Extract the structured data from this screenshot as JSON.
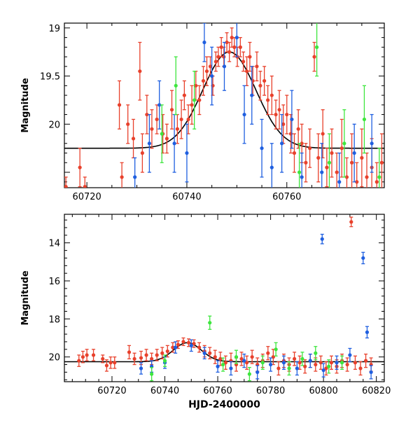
{
  "chart_data": [
    {
      "type": "scatter",
      "title": "",
      "xlabel": "",
      "ylabel": "Magnitude",
      "xlim": [
        60715.5,
        60779.5
      ],
      "ylim": [
        20.66,
        18.95
      ],
      "y_inverted": true,
      "x_ticks": [
        60720,
        60740,
        60760
      ],
      "x_tick_labels": [
        "60720",
        "60740",
        "60760"
      ],
      "y_ticks": [
        19,
        19.5,
        20
      ],
      "y_tick_labels": [
        "19",
        "19.5",
        "20"
      ],
      "grid": false,
      "legend": "none",
      "model_curve": {
        "description_note": "",
        "peak_x": 60748.5,
        "peak_mag": 19.25,
        "base_mag": 20.25,
        "width": 7.5,
        "color": "#000000"
      },
      "series": [
        {
          "color": "#e8412c",
          "points": [
            [
              60715.8,
              20.65,
              0.1
            ],
            [
              60718.6,
              20.45,
              0.2
            ],
            [
              60719.6,
              20.65,
              0.1
            ],
            [
              60726.5,
              19.8,
              0.25
            ],
            [
              60727.0,
              20.55,
              0.15
            ],
            [
              60728.2,
              20.0,
              0.2
            ],
            [
              60729.3,
              20.15,
              0.2
            ],
            [
              60730.6,
              19.45,
              0.3
            ],
            [
              60731.1,
              20.3,
              0.2
            ],
            [
              60732.0,
              19.9,
              0.2
            ],
            [
              60733.0,
              20.05,
              0.2
            ],
            [
              60734.0,
              19.95,
              0.15
            ],
            [
              60735.2,
              20.1,
              0.2
            ],
            [
              60736.0,
              20.15,
              0.15
            ],
            [
              60737.0,
              19.85,
              0.2
            ],
            [
              60738.1,
              20.05,
              0.15
            ],
            [
              60738.9,
              19.95,
              0.2
            ],
            [
              60739.5,
              19.7,
              0.15
            ],
            [
              60740.3,
              19.95,
              0.15
            ],
            [
              60741.0,
              19.8,
              0.2
            ],
            [
              60741.8,
              19.6,
              0.15
            ],
            [
              60742.5,
              19.75,
              0.15
            ],
            [
              60743.3,
              19.55,
              0.15
            ],
            [
              60744.0,
              19.45,
              0.15
            ],
            [
              60744.7,
              19.4,
              0.1
            ],
            [
              60745.2,
              19.6,
              0.1
            ],
            [
              60745.8,
              19.35,
              0.1
            ],
            [
              60746.3,
              19.3,
              0.1
            ],
            [
              60746.9,
              19.2,
              0.1
            ],
            [
              60747.4,
              19.3,
              0.1
            ],
            [
              60748.0,
              19.15,
              0.1
            ],
            [
              60748.5,
              19.25,
              0.1
            ],
            [
              60749.0,
              19.1,
              0.1
            ],
            [
              60749.5,
              19.2,
              0.1
            ],
            [
              60750.1,
              19.3,
              0.1
            ],
            [
              60750.7,
              19.2,
              0.1
            ],
            [
              60751.3,
              19.35,
              0.1
            ],
            [
              60752.0,
              19.45,
              0.15
            ],
            [
              60752.6,
              19.3,
              0.15
            ],
            [
              60753.2,
              19.55,
              0.15
            ],
            [
              60754.0,
              19.4,
              0.15
            ],
            [
              60754.7,
              19.6,
              0.15
            ],
            [
              60755.5,
              19.55,
              0.15
            ],
            [
              60756.2,
              19.75,
              0.15
            ],
            [
              60757.0,
              19.7,
              0.2
            ],
            [
              60757.8,
              19.9,
              0.15
            ],
            [
              60758.5,
              19.85,
              0.2
            ],
            [
              60759.3,
              20.0,
              0.2
            ],
            [
              60760.0,
              19.9,
              0.2
            ],
            [
              60760.8,
              20.1,
              0.2
            ],
            [
              60761.5,
              20.3,
              0.2
            ],
            [
              60762.3,
              20.05,
              0.2
            ],
            [
              60763.0,
              20.2,
              0.2
            ],
            [
              60763.8,
              20.4,
              0.2
            ],
            [
              60764.6,
              20.25,
              0.2
            ],
            [
              60765.5,
              19.3,
              0.15
            ],
            [
              60766.3,
              20.35,
              0.25
            ],
            [
              60767.2,
              20.1,
              0.25
            ],
            [
              60768.0,
              20.45,
              0.2
            ],
            [
              60769.0,
              20.3,
              0.25
            ],
            [
              60770.0,
              20.5,
              0.2
            ],
            [
              60771.0,
              20.25,
              0.3
            ],
            [
              60772.0,
              20.55,
              0.2
            ],
            [
              60773.0,
              20.4,
              0.3
            ],
            [
              60774.0,
              20.6,
              0.2
            ],
            [
              60775.0,
              20.35,
              0.3
            ],
            [
              60776.0,
              20.55,
              0.25
            ],
            [
              60777.0,
              20.45,
              0.3
            ],
            [
              60778.0,
              20.6,
              0.2
            ],
            [
              60779.0,
              20.4,
              0.3
            ]
          ]
        },
        {
          "color": "#1f5fe0",
          "points": [
            [
              60729.6,
              20.55,
              0.2
            ],
            [
              60732.5,
              20.2,
              0.3
            ],
            [
              60734.5,
              19.8,
              0.25
            ],
            [
              60737.5,
              20.2,
              0.3
            ],
            [
              60740.0,
              20.3,
              0.3
            ],
            [
              60743.5,
              19.15,
              0.2
            ],
            [
              60745.0,
              19.5,
              0.3
            ],
            [
              60747.5,
              19.4,
              0.25
            ],
            [
              60750.0,
              19.1,
              0.2
            ],
            [
              60751.5,
              19.9,
              0.3
            ],
            [
              60753.0,
              19.7,
              0.3
            ],
            [
              60755.0,
              20.25,
              0.3
            ],
            [
              60757.0,
              20.45,
              0.25
            ],
            [
              60759.0,
              20.2,
              0.3
            ],
            [
              60761.0,
              19.95,
              0.3
            ],
            [
              60763.0,
              20.55,
              0.25
            ],
            [
              60767.0,
              20.5,
              0.3
            ],
            [
              60770.5,
              20.6,
              0.3
            ],
            [
              60773.5,
              20.3,
              0.3
            ],
            [
              60777.0,
              20.2,
              0.3
            ]
          ]
        },
        {
          "color": "#3ee63e",
          "points": [
            [
              60735.0,
              20.1,
              0.3
            ],
            [
              60737.8,
              19.6,
              0.3
            ],
            [
              60741.5,
              19.75,
              0.3
            ],
            [
              60762.5,
              20.5,
              0.3
            ],
            [
              60766.0,
              19.2,
              0.3
            ],
            [
              60768.5,
              20.4,
              0.3
            ],
            [
              60771.5,
              20.2,
              0.35
            ],
            [
              60775.5,
              19.95,
              0.35
            ],
            [
              60778.5,
              20.55,
              0.3
            ]
          ]
        }
      ]
    },
    {
      "type": "scatter",
      "title": "",
      "xlabel": "HJD-2400000",
      "ylabel": "Magnitude",
      "xlim": [
        60702,
        60823
      ],
      "ylim": [
        21.3,
        12.5
      ],
      "y_inverted": true,
      "x_ticks": [
        60720,
        60740,
        60760,
        60780,
        60800,
        60820
      ],
      "x_tick_labels": [
        "60720",
        "60740",
        "60760",
        "60780",
        "60800",
        "60820"
      ],
      "y_ticks": [
        14,
        16,
        18,
        20
      ],
      "y_tick_labels": [
        "14",
        "16",
        "18",
        "20"
      ],
      "grid": false,
      "legend": "none",
      "model_curve": {
        "peak_x": 60748.5,
        "peak_mag": 19.25,
        "base_mag": 20.25,
        "width": 7.5,
        "color": "#000000"
      },
      "series": [
        {
          "color": "#e8412c",
          "points": [
            [
              60707.5,
              20.2,
              0.3
            ],
            [
              60709.0,
              20.0,
              0.3
            ],
            [
              60710.5,
              19.9,
              0.3
            ],
            [
              60713.0,
              19.9,
              0.3
            ],
            [
              60716.5,
              20.1,
              0.2
            ],
            [
              60718.0,
              20.45,
              0.3
            ],
            [
              60719.5,
              20.3,
              0.3
            ],
            [
              60721.0,
              20.3,
              0.3
            ],
            [
              60726.5,
              19.75,
              0.35
            ],
            [
              60728.5,
              20.1,
              0.3
            ],
            [
              60731.0,
              20.05,
              0.35
            ],
            [
              60733.0,
              19.9,
              0.3
            ],
            [
              60735.0,
              20.1,
              0.3
            ],
            [
              60737.0,
              19.9,
              0.3
            ],
            [
              60739.0,
              19.8,
              0.3
            ],
            [
              60741.0,
              19.7,
              0.3
            ],
            [
              60743.0,
              19.5,
              0.25
            ],
            [
              60745.0,
              19.35,
              0.2
            ],
            [
              60747.0,
              19.2,
              0.2
            ],
            [
              60749.0,
              19.25,
              0.2
            ],
            [
              60751.0,
              19.3,
              0.2
            ],
            [
              60753.0,
              19.5,
              0.25
            ],
            [
              60755.0,
              19.7,
              0.3
            ],
            [
              60757.0,
              19.8,
              0.3
            ],
            [
              60759.0,
              20.0,
              0.35
            ],
            [
              60761.0,
              20.1,
              0.35
            ],
            [
              60763.0,
              20.3,
              0.35
            ],
            [
              60765.0,
              20.2,
              0.4
            ],
            [
              60767.0,
              20.4,
              0.35
            ],
            [
              60769.0,
              20.1,
              0.35
            ],
            [
              60771.0,
              20.3,
              0.35
            ],
            [
              60773.0,
              20.0,
              0.35
            ],
            [
              60775.0,
              20.4,
              0.35
            ],
            [
              60777.0,
              20.2,
              0.35
            ],
            [
              60779.0,
              19.8,
              0.35
            ],
            [
              60781.0,
              20.0,
              0.4
            ],
            [
              60783.0,
              20.6,
              0.35
            ],
            [
              60785.0,
              20.2,
              0.35
            ],
            [
              60787.0,
              20.4,
              0.35
            ],
            [
              60789.0,
              20.1,
              0.35
            ],
            [
              60791.0,
              20.3,
              0.35
            ],
            [
              60793.0,
              20.5,
              0.35
            ],
            [
              60795.0,
              20.2,
              0.35
            ],
            [
              60797.0,
              20.4,
              0.35
            ],
            [
              60799.0,
              20.3,
              0.35
            ],
            [
              60801.0,
              20.6,
              0.35
            ],
            [
              60803.0,
              20.3,
              0.35
            ],
            [
              60805.0,
              20.5,
              0.35
            ],
            [
              60807.0,
              20.2,
              0.35
            ],
            [
              60809.0,
              20.4,
              0.35
            ],
            [
              60810.5,
              12.9,
              0.25
            ],
            [
              60812.0,
              20.3,
              0.35
            ],
            [
              60814.0,
              20.6,
              0.35
            ],
            [
              60816.0,
              20.2,
              0.35
            ],
            [
              60818.0,
              20.4,
              0.35
            ]
          ]
        },
        {
          "color": "#1f5fe0",
          "points": [
            [
              60731.0,
              20.6,
              0.3
            ],
            [
              60735.0,
              20.5,
              0.3
            ],
            [
              60740.0,
              20.3,
              0.3
            ],
            [
              60744.0,
              19.5,
              0.3
            ],
            [
              60750.0,
              19.4,
              0.3
            ],
            [
              60755.0,
              19.8,
              0.3
            ],
            [
              60760.0,
              20.5,
              0.3
            ],
            [
              60765.0,
              20.6,
              0.35
            ],
            [
              60770.0,
              20.2,
              0.35
            ],
            [
              60775.0,
              20.8,
              0.35
            ],
            [
              60780.0,
              20.4,
              0.35
            ],
            [
              60785.0,
              20.3,
              0.35
            ],
            [
              60790.0,
              20.6,
              0.35
            ],
            [
              60795.0,
              20.2,
              0.35
            ],
            [
              60799.5,
              13.8,
              0.25
            ],
            [
              60800.0,
              20.7,
              0.35
            ],
            [
              60805.0,
              20.3,
              0.35
            ],
            [
              60810.0,
              19.9,
              0.35
            ],
            [
              60815.0,
              14.8,
              0.3
            ],
            [
              60816.5,
              18.7,
              0.3
            ],
            [
              60818.0,
              20.8,
              0.35
            ]
          ]
        },
        {
          "color": "#3ee63e",
          "points": [
            [
              60735.0,
              20.9,
              0.35
            ],
            [
              60740.0,
              20.2,
              0.3
            ],
            [
              60757.0,
              18.2,
              0.35
            ],
            [
              60762.0,
              20.4,
              0.35
            ],
            [
              60767.0,
              20.0,
              0.35
            ],
            [
              60772.0,
              20.9,
              0.35
            ],
            [
              60777.0,
              20.3,
              0.35
            ],
            [
              60782.0,
              19.6,
              0.35
            ],
            [
              60787.0,
              20.6,
              0.35
            ],
            [
              60792.0,
              20.1,
              0.35
            ],
            [
              60797.0,
              19.8,
              0.35
            ],
            [
              60802.0,
              20.5,
              0.35
            ],
            [
              60807.0,
              20.3,
              0.35
            ]
          ]
        }
      ]
    }
  ]
}
